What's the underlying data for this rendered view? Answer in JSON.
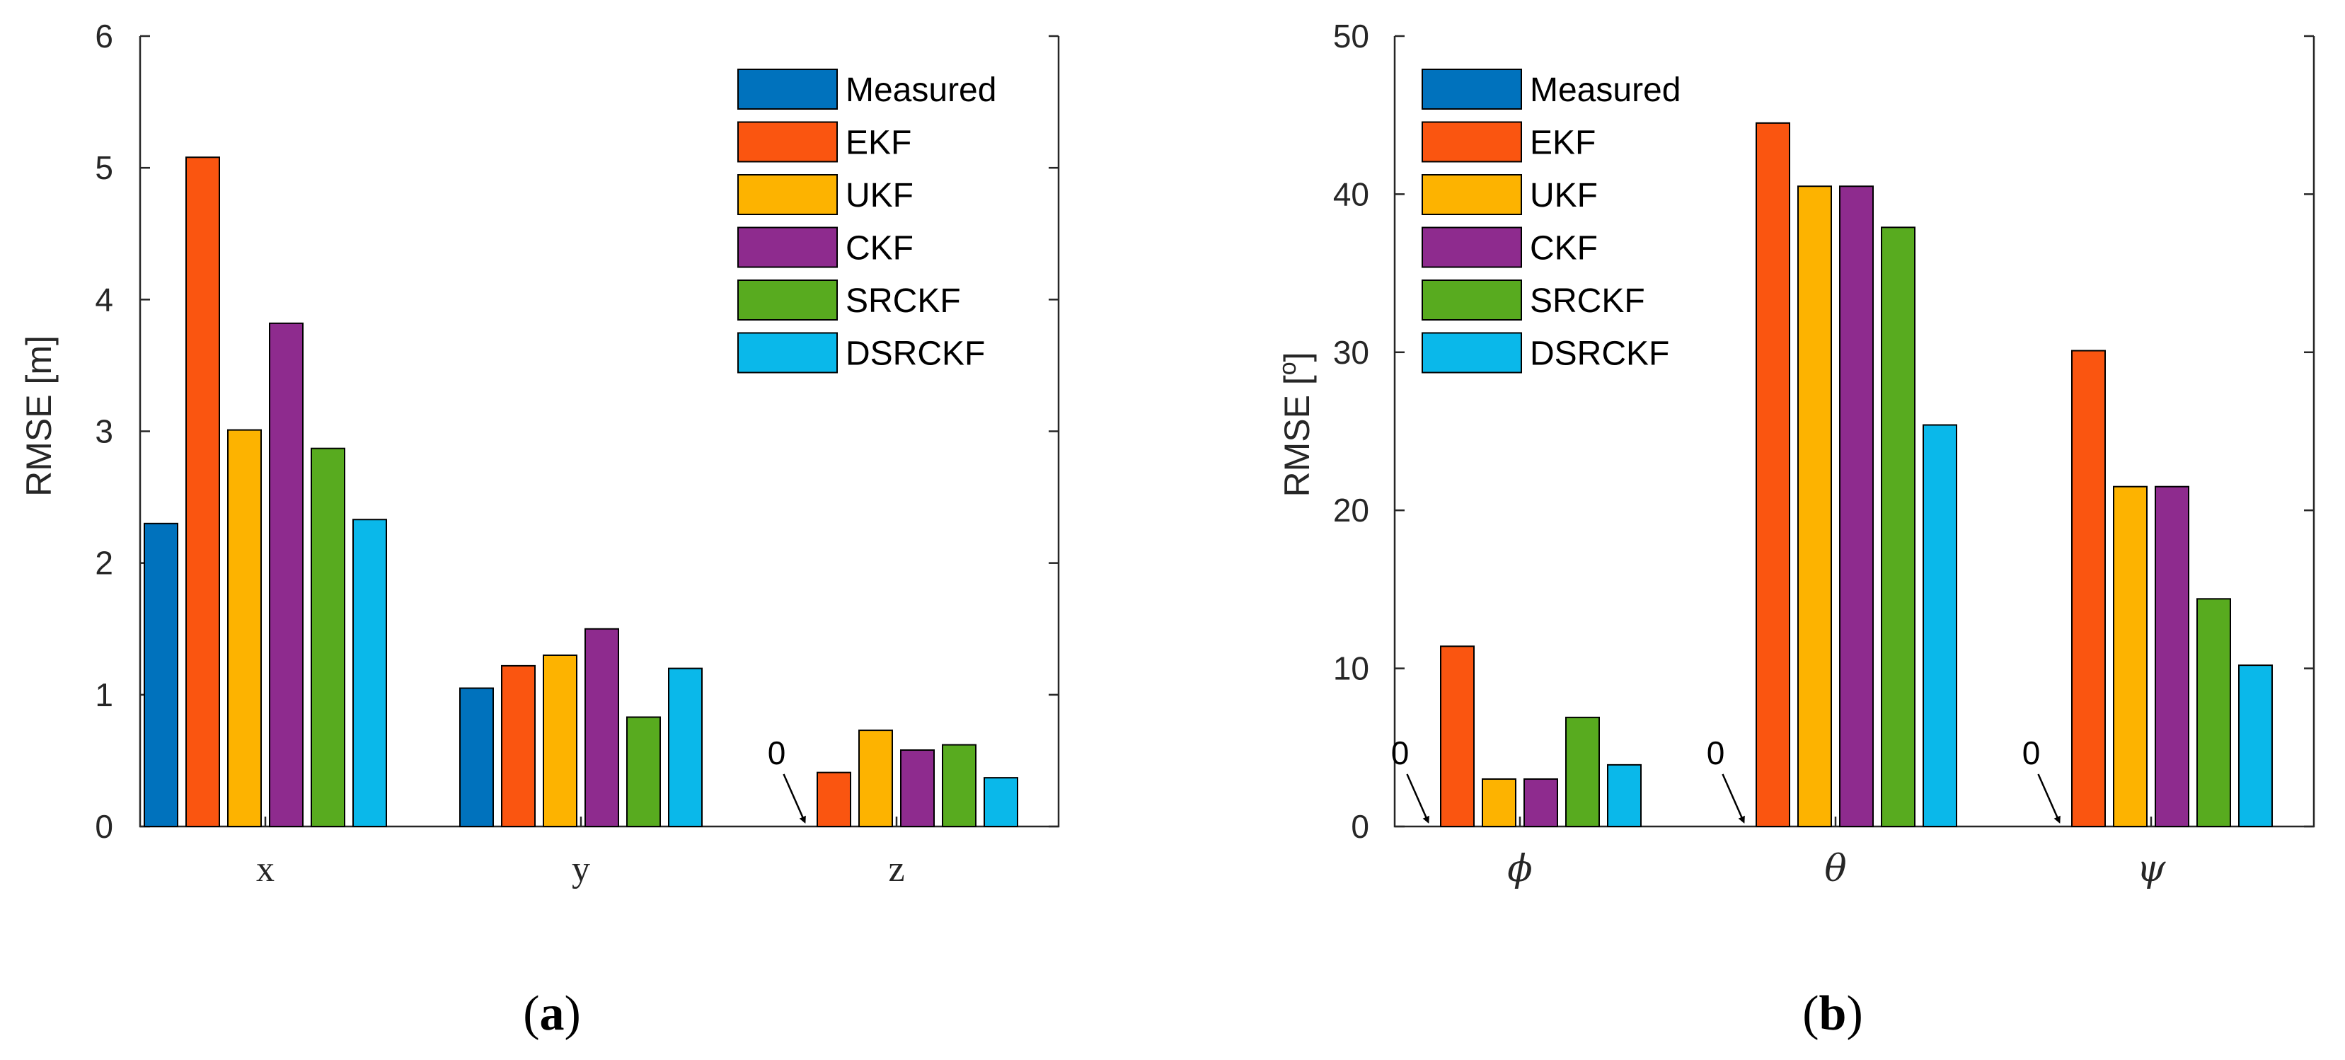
{
  "colors": {
    "Measured": "#0072bd",
    "EKF": "#fa5510",
    "UKF": "#fdb300",
    "CKF": "#8e2b8e",
    "SRCKF": "#58ab1f",
    "DSRCKF": "#0ab8ea",
    "axis": "#262626"
  },
  "chart_data": [
    {
      "type": "bar",
      "panel_label": {
        "open": "(",
        "letter": "a",
        "close": ")"
      },
      "categories": [
        "x",
        "y",
        "z"
      ],
      "categories_italic": false,
      "ylabel": "RMSE [m]",
      "ylim": [
        0,
        6
      ],
      "yticks": [
        "0",
        "1",
        "2",
        "3",
        "4",
        "5",
        "6"
      ],
      "legend_position": "top-right",
      "series": [
        {
          "name": "Measured",
          "values": [
            2.3,
            1.05,
            0
          ]
        },
        {
          "name": "EKF",
          "values": [
            5.08,
            1.22,
            0.41
          ]
        },
        {
          "name": "UKF",
          "values": [
            3.01,
            1.3,
            0.73
          ]
        },
        {
          "name": "CKF",
          "values": [
            3.82,
            1.5,
            0.58
          ]
        },
        {
          "name": "SRCKF",
          "values": [
            2.87,
            0.83,
            0.62
          ]
        },
        {
          "name": "DSRCKF",
          "values": [
            2.33,
            1.2,
            0.37
          ]
        }
      ],
      "annotations": [
        {
          "text": "0",
          "category": "z",
          "series": "Measured"
        }
      ]
    },
    {
      "type": "bar",
      "panel_label": {
        "open": "(",
        "letter": "b",
        "close": ")"
      },
      "categories": [
        "ϕ",
        "θ",
        "ψ"
      ],
      "categories_italic": true,
      "ylabel": "RMSE [",
      "ylabel_sup": "o",
      "ylabel_close": "]",
      "ylim": [
        0,
        50
      ],
      "yticks": [
        "0",
        "10",
        "20",
        "30",
        "40",
        "50"
      ],
      "legend_position": "top-left",
      "series": [
        {
          "name": "Measured",
          "values": [
            0,
            0,
            0
          ]
        },
        {
          "name": "EKF",
          "values": [
            11.4,
            44.5,
            30.1
          ]
        },
        {
          "name": "UKF",
          "values": [
            3.0,
            40.5,
            21.5
          ]
        },
        {
          "name": "CKF",
          "values": [
            3.0,
            40.5,
            21.5
          ]
        },
        {
          "name": "SRCKF",
          "values": [
            6.9,
            37.9,
            14.4
          ]
        },
        {
          "name": "DSRCKF",
          "values": [
            3.9,
            25.4,
            10.2
          ]
        }
      ],
      "annotations": [
        {
          "text": "0",
          "category": "ϕ",
          "series": "Measured"
        },
        {
          "text": "0",
          "category": "θ",
          "series": "Measured"
        },
        {
          "text": "0",
          "category": "ψ",
          "series": "Measured"
        }
      ]
    }
  ]
}
